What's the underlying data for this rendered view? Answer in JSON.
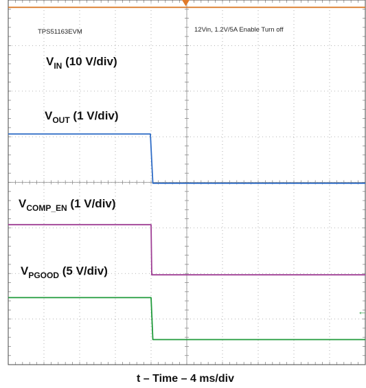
{
  "chart_data": {
    "type": "line",
    "board_label": "TPS51163EVM",
    "condition_label": "12Vin, 1.2V/5A Enable Turn off",
    "xlabel": "t – Time – 4 ms/div",
    "x_unit": "div",
    "xlim": [
      0,
      10
    ],
    "y_unit": "div",
    "ylim": [
      0,
      8
    ],
    "grid": true,
    "trigger_marker": "orange-triangle-top",
    "ground_marker": "green-arrow-right",
    "series": [
      {
        "key": "vin",
        "main": "V",
        "sub": "IN",
        "rest": " (10 V/div)",
        "color": "#d8731e",
        "x": [
          0,
          4.02,
          10
        ],
        "y": [
          7.84,
          7.84,
          7.84
        ]
      },
      {
        "key": "vout",
        "main": "V",
        "sub": "OUT",
        "rest": " (1 V/div)",
        "color": "#2d6bc6",
        "x": [
          0,
          3.98,
          4.02,
          4.05,
          10
        ],
        "y": [
          5.06,
          5.06,
          4.45,
          3.98,
          3.98
        ]
      },
      {
        "key": "vcomp",
        "main": "V",
        "sub": "COMP_EN",
        "rest": " (1 V/div)",
        "color": "#9e3d94",
        "x": [
          0,
          4.0,
          4.02,
          10
        ],
        "y": [
          3.07,
          3.07,
          1.97,
          1.97
        ]
      },
      {
        "key": "vpgood",
        "main": "V",
        "sub": "PGOOD",
        "rest": " (5 V/div)",
        "color": "#1f9a3a",
        "x": [
          0,
          4.0,
          4.05,
          10
        ],
        "y": [
          1.47,
          1.47,
          0.55,
          0.55
        ]
      }
    ]
  }
}
